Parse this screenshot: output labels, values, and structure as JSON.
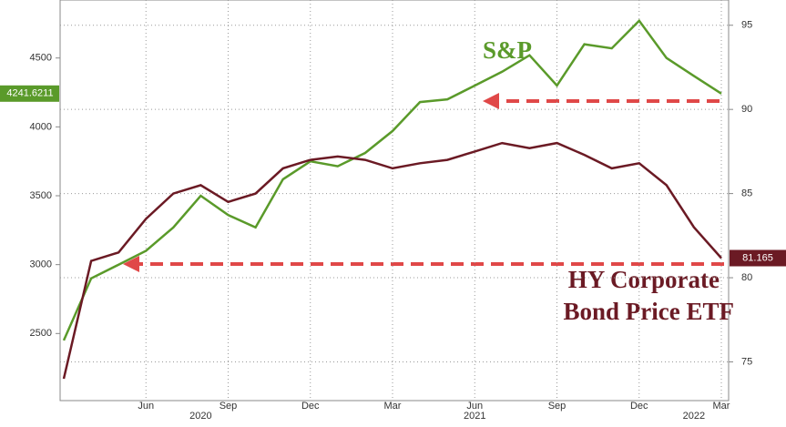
{
  "chart_data": {
    "type": "line",
    "x": [
      "2020-03",
      "2020-04",
      "2020-05",
      "2020-06",
      "2020-07",
      "2020-08",
      "2020-09",
      "2020-10",
      "2020-11",
      "2020-12",
      "2021-01",
      "2021-02",
      "2021-03",
      "2021-04",
      "2021-05",
      "2021-06",
      "2021-07",
      "2021-08",
      "2021-09",
      "2021-10",
      "2021-11",
      "2021-12",
      "2022-01",
      "2022-02",
      "2022-03"
    ],
    "xlim": [
      "2020-03",
      "2022-03"
    ],
    "xticks": [
      {
        "value": "2020-06",
        "label": "Jun"
      },
      {
        "value": "2020-09",
        "label": "Sep"
      },
      {
        "value": "2020-12",
        "label": "Dec"
      },
      {
        "value": "2021-03",
        "label": "Mar"
      },
      {
        "value": "2021-06",
        "label": "Jun"
      },
      {
        "value": "2021-09",
        "label": "Sep"
      },
      {
        "value": "2021-12",
        "label": "Dec"
      },
      {
        "value": "2022-03",
        "label": "Mar"
      }
    ],
    "year_labels": [
      {
        "value": "2020-08",
        "label": "2020"
      },
      {
        "value": "2021-06",
        "label": "2021"
      },
      {
        "value": "2022-02",
        "label": "2022"
      }
    ],
    "ylim": [
      2013,
      4921
    ],
    "yticks": [
      2500,
      3000,
      3500,
      4000,
      4500
    ],
    "y2lim": [
      72.7,
      96.5
    ],
    "y2ticks": [
      75,
      80,
      85,
      90,
      95
    ],
    "grid": true,
    "series": [
      {
        "name": "S&P",
        "color": "#5a9a2a",
        "values": [
          2450,
          2900,
          3000,
          3100,
          3270,
          3500,
          3360,
          3270,
          3620,
          3750,
          3714,
          3811,
          3970,
          4180,
          4200,
          4300,
          4400,
          4520,
          4300,
          4600,
          4570,
          4770,
          4500,
          4370,
          4241.6211
        ]
      },
      {
        "name": "HY Corporate Bond Price ETF",
        "color": "#6b1a24",
        "axis": "y2",
        "values": [
          74,
          81,
          81.5,
          83.5,
          85,
          85.5,
          84.5,
          85,
          86.5,
          87,
          87.2,
          87,
          86.5,
          86.8,
          87,
          87.5,
          88,
          87.7,
          88,
          87.3,
          86.5,
          86.8,
          85.5,
          83,
          81.165
        ]
      }
    ],
    "annotations": {
      "sp": "S&P",
      "hy": [
        "HY Corporate",
        "Bond Price ETF"
      ]
    }
  }
}
